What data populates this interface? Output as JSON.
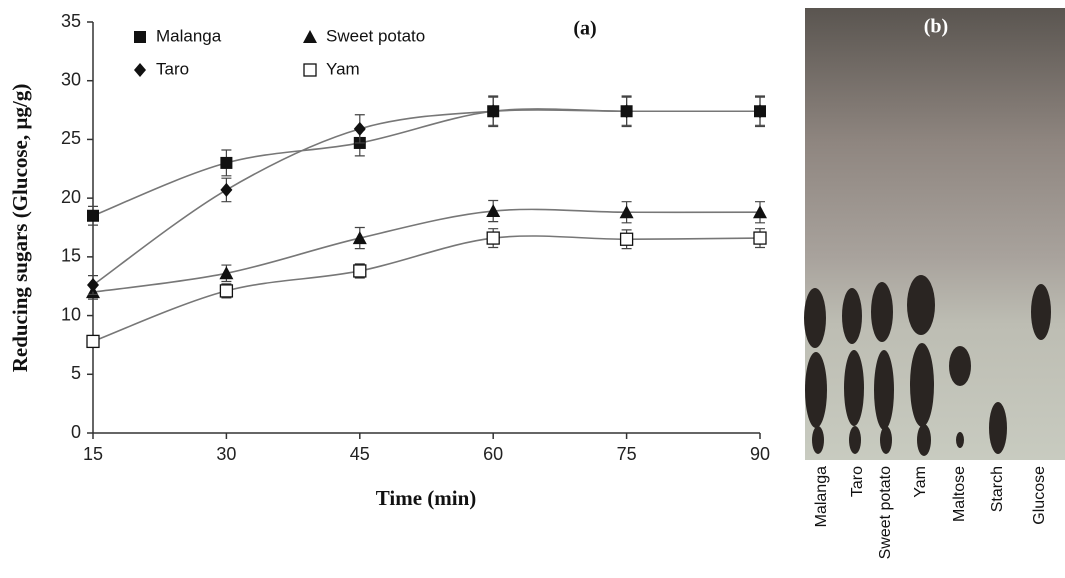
{
  "chart_data": {
    "type": "line",
    "panel_label": "(a)",
    "x_label": "Time (min)",
    "y_label": "Reducing sugars (Glucose, µg/g)",
    "x": [
      15,
      30,
      45,
      60,
      75,
      90
    ],
    "xlim": [
      15,
      90
    ],
    "xticks": [
      15,
      30,
      45,
      60,
      75,
      90
    ],
    "ylim": [
      0,
      35
    ],
    "yticks": [
      0,
      5,
      10,
      15,
      20,
      25,
      30,
      35
    ],
    "series": [
      {
        "name": "Malanga",
        "marker": "square",
        "color": "#111111",
        "values": [
          18.5,
          23,
          24.7,
          27.4,
          27.4,
          27.4
        ],
        "errors": [
          0.8,
          1.1,
          1.1,
          1.3,
          1.3,
          1.3
        ]
      },
      {
        "name": "Sweet potato",
        "marker": "triangle",
        "color": "#111111",
        "values": [
          12,
          13.6,
          16.6,
          18.9,
          18.8,
          18.8
        ],
        "errors": [
          0.6,
          0.7,
          0.9,
          0.9,
          0.9,
          0.9
        ]
      },
      {
        "name": "Taro",
        "marker": "diamond",
        "color": "#111111",
        "values": [
          12.6,
          20.7,
          25.9,
          27.4,
          27.4,
          27.4
        ],
        "errors": [
          0.8,
          1,
          1.2,
          1.2,
          1.2,
          1.2
        ]
      },
      {
        "name": "Yam",
        "marker": "open-square",
        "color": "#111111",
        "values": [
          7.8,
          12.1,
          13.8,
          16.6,
          16.5,
          16.6
        ],
        "errors": [
          0.4,
          0.6,
          0.6,
          0.8,
          0.8,
          0.8
        ]
      }
    ]
  },
  "plate": {
    "panel_label": "(b)",
    "lanes": [
      "Malanga",
      "Taro",
      "Sweet potato",
      "Yam",
      "Maltose",
      "Starch",
      "Glucose"
    ]
  }
}
